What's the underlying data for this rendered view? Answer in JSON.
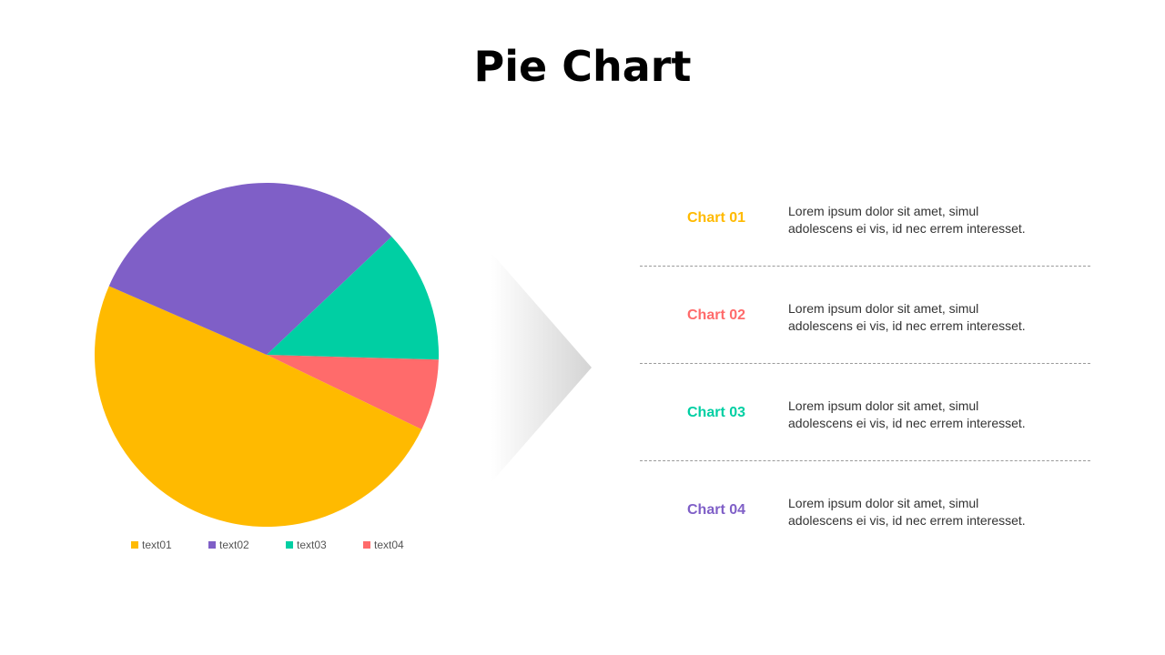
{
  "title": "Pie Chart",
  "chart_data": {
    "type": "pie",
    "title": "Pie Chart",
    "categories": [
      "text01",
      "text02",
      "text03",
      "text04"
    ],
    "values": [
      49.4,
      31.4,
      12.5,
      6.7
    ],
    "colors": [
      "#FFBA00",
      "#7F5FC7",
      "#00CFA3",
      "#FF6B6B"
    ],
    "legend_position": "bottom"
  },
  "rows": [
    {
      "label": "Chart 01",
      "color": "#FFBA00",
      "desc": "Lorem ipsum dolor sit amet, simul\nadolescens ei vis, id nec errem interesset."
    },
    {
      "label": "Chart 02",
      "color": "#FF6B6B",
      "desc": "Lorem ipsum dolor sit amet, simul\nadolescens ei vis, id nec errem interesset."
    },
    {
      "label": "Chart 03",
      "color": "#00CFA3",
      "desc": "Lorem ipsum dolor sit amet, simul\nadolescens ei vis, id nec errem interesset."
    },
    {
      "label": "Chart 04",
      "color": "#7F5FC7",
      "desc": "Lorem ipsum dolor sit amet, simul\nadolescens ei vis, id nec errem interesset."
    }
  ]
}
